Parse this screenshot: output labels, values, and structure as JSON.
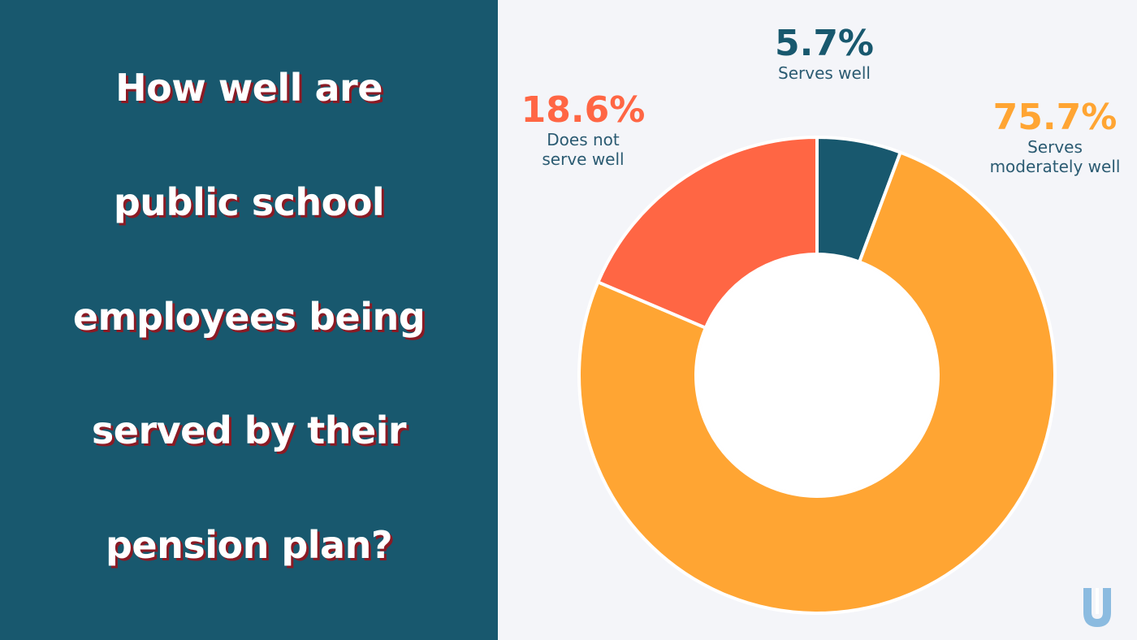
{
  "title_lines": [
    "How well are",
    "public school",
    "employees being",
    "served by their",
    "pension plan?"
  ],
  "chart_data": {
    "type": "pie",
    "donut": true,
    "slices": [
      {
        "label_pct": "5.7%",
        "label_lines": [
          "Serves well"
        ],
        "value": 5.7,
        "color": "#18586e"
      },
      {
        "label_pct": "75.7%",
        "label_lines": [
          "Serves",
          "moderately well"
        ],
        "value": 75.7,
        "color": "#ffa533"
      },
      {
        "label_pct": "18.6%",
        "label_lines": [
          "Does not",
          "serve well"
        ],
        "value": 18.6,
        "color": "#ff6644"
      }
    ]
  },
  "colors": {
    "panel": "#18586e",
    "background": "#f4f5f9",
    "title_shadow": "#8b1a24",
    "logo": "#8bbbe0"
  },
  "logo_icon": "u-logo-icon"
}
